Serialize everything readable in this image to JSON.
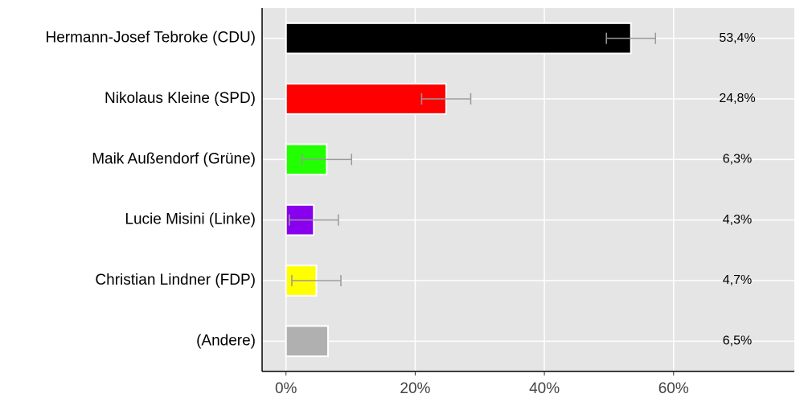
{
  "chart_data": {
    "type": "bar",
    "orientation": "horizontal",
    "categories": [
      "Hermann-Josef Tebroke (CDU)",
      "Nikolaus Kleine (SPD)",
      "Maik Außendorf (Grüne)",
      "Lucie Misini (Linke)",
      "Christian Lindner (FDP)",
      "(Andere)"
    ],
    "values": [
      53.4,
      24.8,
      6.3,
      4.3,
      4.7,
      6.5
    ],
    "value_labels": [
      "53,4%",
      "24,8%",
      "6,3%",
      "4,3%",
      "4,7%",
      "6,5%"
    ],
    "errors": [
      3.8,
      3.8,
      3.85,
      3.8,
      3.8,
      null
    ],
    "colors": [
      "#000000",
      "#ff0000",
      "#22ff00",
      "#8800ee",
      "#ffff00",
      "#b0b0b0"
    ],
    "error_color": "#999999",
    "xlim": [
      -3.7,
      78.7
    ],
    "xticks": [
      {
        "value": 0,
        "label": "0%"
      },
      {
        "value": 20,
        "label": "20%"
      },
      {
        "value": 40,
        "label": "40%"
      },
      {
        "value": 60,
        "label": "60%"
      }
    ],
    "grid": true
  }
}
